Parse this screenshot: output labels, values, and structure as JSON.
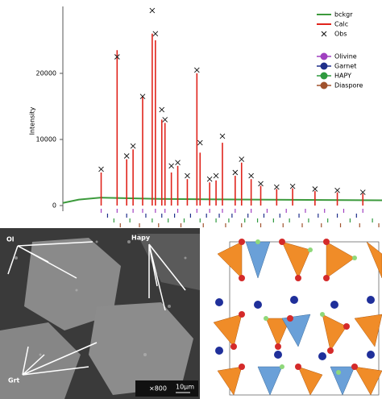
{
  "chart_data": {
    "type": "line",
    "ylabel": "Intensity",
    "xlim": [
      0,
      100
    ],
    "ylim": [
      0,
      30000
    ],
    "yticks": [
      0,
      10000,
      20000
    ],
    "series": [
      {
        "name": "bckgr",
        "color": "#3c9a3c",
        "style": "line",
        "x": [
          0,
          5,
          12,
          30,
          60,
          100
        ],
        "values": [
          400,
          900,
          1200,
          1000,
          900,
          800
        ]
      },
      {
        "name": "Calc",
        "color": "#e0241c",
        "style": "spikes",
        "x": [
          12,
          17,
          20,
          22,
          25,
          28,
          29,
          31,
          32,
          34,
          36,
          39,
          42,
          43,
          46,
          48,
          50,
          54,
          56,
          59,
          62,
          67,
          72,
          79,
          86,
          94
        ],
        "values": [
          5000,
          23500,
          7000,
          8500,
          16500,
          26000,
          25000,
          13000,
          12500,
          5000,
          6000,
          4000,
          20000,
          8000,
          3500,
          3800,
          9500,
          4500,
          6500,
          4000,
          3000,
          2500,
          2600,
          2200,
          2000,
          1800
        ]
      },
      {
        "name": "Obs",
        "color": "#111111",
        "style": "markers",
        "x": [
          12,
          17,
          20,
          22,
          25,
          28,
          29,
          31,
          32,
          34,
          36,
          39,
          42,
          43,
          46,
          48,
          50,
          54,
          56,
          59,
          62,
          67,
          72,
          79,
          86,
          94
        ],
        "values": [
          5500,
          22500,
          7500,
          9000,
          16500,
          29500,
          26000,
          14500,
          13000,
          6000,
          6500,
          4500,
          20500,
          9500,
          4000,
          4500,
          10500,
          5000,
          7000,
          4500,
          3300,
          2800,
          2900,
          2500,
          2300,
          2000
        ]
      }
    ],
    "phases": [
      {
        "name": "Olivine",
        "color": "#a040c0",
        "reflections": [
          12,
          17,
          22,
          25,
          29,
          32,
          36,
          42,
          46,
          50,
          54,
          59,
          64,
          70,
          76,
          82,
          88,
          94
        ]
      },
      {
        "name": "Garnet",
        "color": "#1f2f8a",
        "reflections": [
          14,
          20,
          26,
          31,
          35,
          40,
          45,
          49,
          53,
          58,
          63,
          68,
          74,
          80,
          86,
          92
        ]
      },
      {
        "name": "HAPY",
        "color": "#2f9a3f",
        "reflections": [
          16,
          21,
          28,
          33,
          38,
          43,
          48,
          52,
          57,
          61,
          66,
          71,
          77,
          83,
          90,
          97
        ]
      },
      {
        "name": "Diaspore",
        "color": "#a0522d",
        "reflections": [
          18,
          24,
          30,
          37,
          44,
          51,
          56,
          62,
          69,
          75,
          81,
          87,
          93,
          99
        ]
      }
    ]
  },
  "sem": {
    "labels": [
      "Ol",
      "Hapy",
      "Grt"
    ],
    "magnification": "×800",
    "scale": "10µm"
  }
}
